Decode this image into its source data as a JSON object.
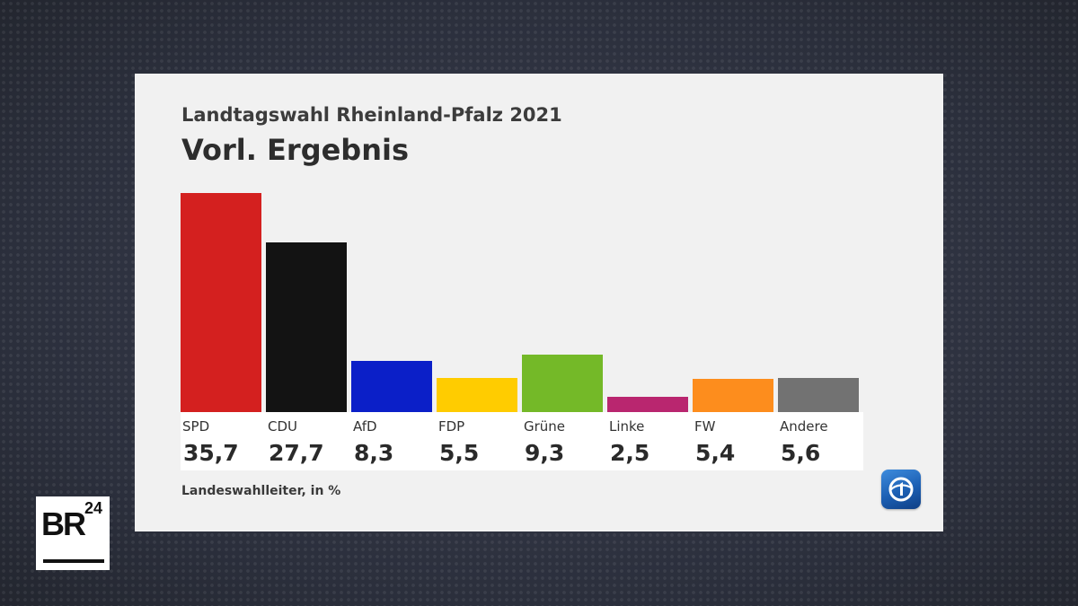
{
  "header": {
    "supertitle": "Landtagswahl Rheinland-Pfalz 2021",
    "title": "Vorl. Ergebnis"
  },
  "source": "Landeswahlleiter, in %",
  "branding": {
    "broadcaster_logo": "BR24",
    "network_logo_icon": "ard-das-erste-icon"
  },
  "chart_data": {
    "type": "bar",
    "title": "Vorl. Ergebnis",
    "xlabel": "",
    "ylabel": "",
    "ylim": [
      0,
      35.7
    ],
    "categories": [
      "SPD",
      "CDU",
      "AfD",
      "FDP",
      "Grüne",
      "Linke",
      "FW",
      "Andere"
    ],
    "values": [
      35.7,
      27.7,
      8.3,
      5.5,
      9.3,
      2.5,
      5.4,
      5.6
    ],
    "value_labels": [
      "35,7",
      "27,7",
      "8,3",
      "5,5",
      "9,3",
      "2,5",
      "5,4",
      "5,6"
    ],
    "colors": [
      "#d4201f",
      "#131313",
      "#0b1fc8",
      "#ffcc00",
      "#74b928",
      "#b9266f",
      "#fd8d1d",
      "#727272"
    ]
  }
}
